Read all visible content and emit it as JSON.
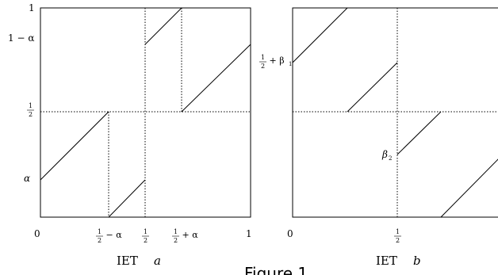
{
  "panel_a": {
    "caption_prefix": "IET",
    "caption_var": "a",
    "ylabels": {
      "one": "1",
      "one_minus_alpha": "1 − α",
      "half_num": "1",
      "half_den": "2",
      "alpha": "α"
    },
    "xlabels": {
      "zero": "0",
      "half_minus_alpha_suffix": " − α",
      "half_plus_alpha_suffix": " + α",
      "one": "1"
    }
  },
  "panel_b": {
    "caption_prefix": "IET",
    "caption_var": "b",
    "ylabels": {
      "half_plus_beta1_suffix": " + β",
      "beta1_sub": "1",
      "beta2": "β",
      "beta2_sub": "2"
    },
    "xlabels": {
      "zero": "0"
    }
  },
  "figure_caption": "Figure 1"
}
